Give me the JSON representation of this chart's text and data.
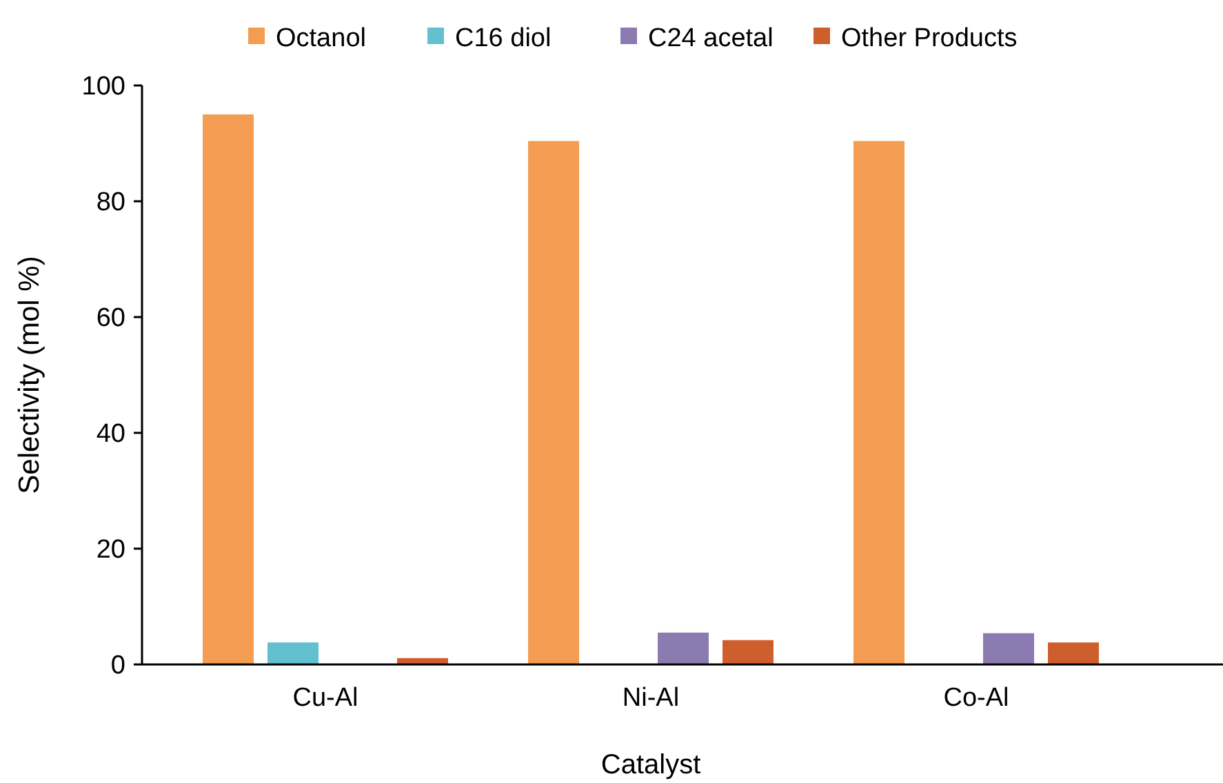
{
  "chart_data": {
    "type": "bar",
    "xlabel": "Catalyst",
    "ylabel": "Selectivity (mol %)",
    "categories": [
      "Cu-Al",
      "Ni-Al",
      "Co-Al"
    ],
    "series": [
      {
        "name": "Octanol",
        "color": "#f39c52",
        "values": [
          95,
          90.4,
          90.4
        ]
      },
      {
        "name": "C16 diol",
        "color": "#63c0cf",
        "values": [
          3.8,
          null,
          null
        ]
      },
      {
        "name": "C24 acetal",
        "color": "#8b7bb0",
        "values": [
          null,
          5.5,
          5.4
        ]
      },
      {
        "name": "Other Products",
        "color": "#cf5e2d",
        "values": [
          1.1,
          4.2,
          3.8
        ]
      }
    ],
    "ylim": [
      0,
      100
    ],
    "yticks": [
      0,
      20,
      40,
      60,
      80,
      100
    ],
    "legend": "top",
    "grid": false
  }
}
